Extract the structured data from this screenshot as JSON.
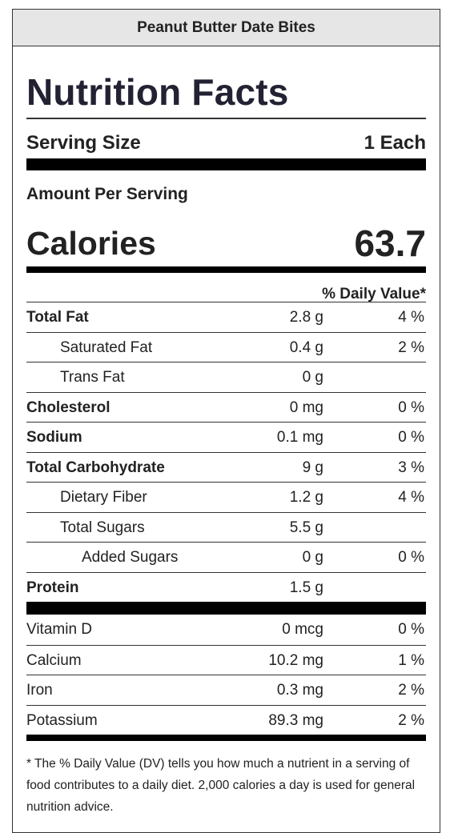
{
  "header": {
    "recipe_name": "Peanut Butter Date Bites"
  },
  "label": {
    "title": "Nutrition Facts",
    "serving_size_label": "Serving Size",
    "serving_size_value": "1 Each",
    "amount_per_serving": "Amount Per Serving",
    "calories_label": "Calories",
    "calories_value": "63.7",
    "daily_value_header": "% Daily Value*"
  },
  "nutrients": [
    {
      "name": "Total Fat",
      "amount": "2.8 g",
      "dv": "4 %",
      "bold": true,
      "indent": 0
    },
    {
      "name": "Saturated Fat",
      "amount": "0.4 g",
      "dv": "2 %",
      "bold": false,
      "indent": 1
    },
    {
      "name": "Trans Fat",
      "amount": "0 g",
      "dv": "",
      "bold": false,
      "indent": 1
    },
    {
      "name": "Cholesterol",
      "amount": "0 mg",
      "dv": "0 %",
      "bold": true,
      "indent": 0
    },
    {
      "name": "Sodium",
      "amount": "0.1 mg",
      "dv": "0 %",
      "bold": true,
      "indent": 0
    },
    {
      "name": "Total Carbohydrate",
      "amount": "9 g",
      "dv": "3 %",
      "bold": true,
      "indent": 0
    },
    {
      "name": "Dietary Fiber",
      "amount": "1.2 g",
      "dv": "4 %",
      "bold": false,
      "indent": 1
    },
    {
      "name": "Total Sugars",
      "amount": "5.5 g",
      "dv": "",
      "bold": false,
      "indent": 1
    },
    {
      "name": "Added Sugars",
      "amount": "0 g",
      "dv": "0 %",
      "bold": false,
      "indent": 2
    },
    {
      "name": "Protein",
      "amount": "1.5 g",
      "dv": "",
      "bold": true,
      "indent": 0
    }
  ],
  "vitamins": [
    {
      "name": "Vitamin D",
      "amount": "0 mcg",
      "dv": "0 %"
    },
    {
      "name": "Calcium",
      "amount": "10.2 mg",
      "dv": "1 %"
    },
    {
      "name": "Iron",
      "amount": "0.3 mg",
      "dv": "2 %"
    },
    {
      "name": "Potassium",
      "amount": "89.3 mg",
      "dv": "2 %"
    }
  ],
  "footnote": "* The % Daily Value (DV) tells you how much a nutrient in a serving of food contributes to a daily diet. 2,000 calories a day is used for general nutrition advice."
}
